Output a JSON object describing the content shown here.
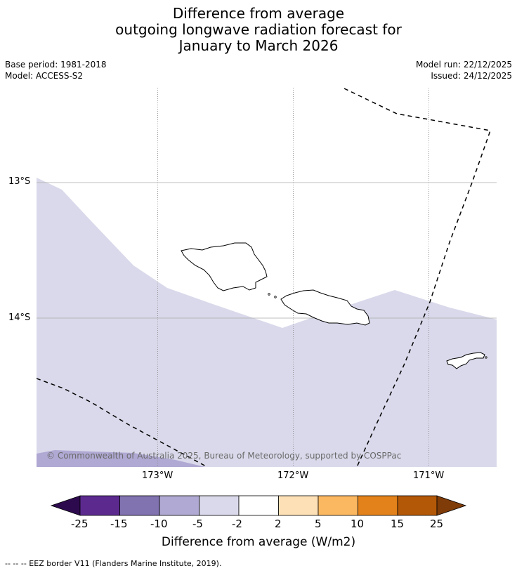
{
  "title_lines": [
    "Difference from average",
    "outgoing longwave radiation forecast for",
    "January to March 2026"
  ],
  "left_info": [
    "Base period: 1981-2018",
    "Model: ACCESS-S2"
  ],
  "right_info": [
    "Model run: 22/12/2025",
    "Issued: 24/12/2025"
  ],
  "lat_labels": [
    "13°S",
    "14°S"
  ],
  "lon_labels": [
    "173°W",
    "172°W",
    "171°W"
  ],
  "copyright": "© Commonwealth of Australia 2025, Bureau of Meteorology, supported by COSPPac",
  "colorbar": {
    "title": "Difference from average (W/m2)",
    "tick_labels": [
      "-25",
      "-15",
      "-10",
      "-5",
      "-2",
      "2",
      "5",
      "10",
      "15",
      "25"
    ],
    "colors": [
      "#2d0a4e",
      "#5c2a8f",
      "#8172b0",
      "#b0a9d3",
      "#d9d9eb",
      "#ffffff",
      "#fde0b6",
      "#fcb861",
      "#e3811a",
      "#b35806",
      "#7f3b08"
    ]
  },
  "footer": "--  --  -- EEZ border V11 (Flanders Marine Institute, 2019)."
}
